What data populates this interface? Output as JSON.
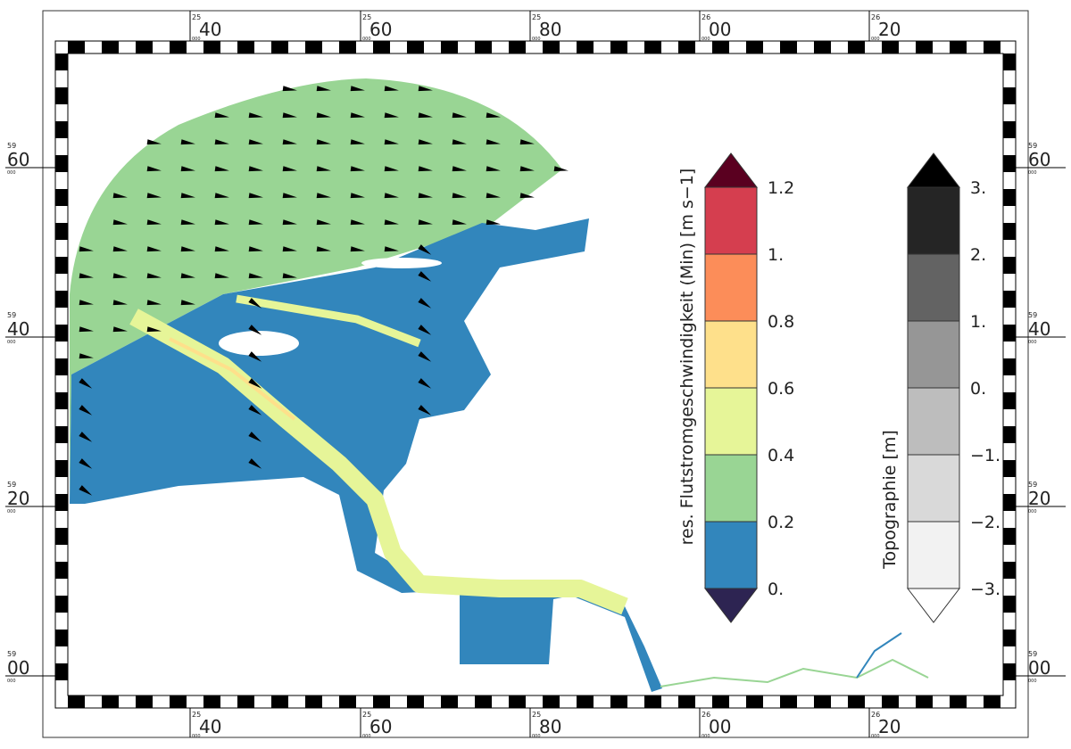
{
  "map": {
    "x_labels": [
      {
        "prefix": "25",
        "main": "40",
        "sub": "000"
      },
      {
        "prefix": "25",
        "main": "60",
        "sub": "000"
      },
      {
        "prefix": "25",
        "main": "80",
        "sub": "000"
      },
      {
        "prefix": "26",
        "main": "00",
        "sub": "000"
      },
      {
        "prefix": "26",
        "main": "20",
        "sub": "000"
      }
    ],
    "y_labels": [
      {
        "prefix": "59",
        "main": "60",
        "sub": "000"
      },
      {
        "prefix": "59",
        "main": "40",
        "sub": "000"
      },
      {
        "prefix": "59",
        "main": "20",
        "sub": "000"
      },
      {
        "prefix": "59",
        "main": "00",
        "sub": "000"
      }
    ]
  },
  "colorbars": [
    {
      "label": "res. Flutstromgeschwindigkeit (Min) [m s−1]",
      "ticks": [
        "0.",
        "0.2",
        "0.4",
        "0.6",
        "0.8",
        "1.",
        "1.2"
      ],
      "under_color": "#2d2452",
      "colors": [
        "#3286bc",
        "#99d594",
        "#e6f598",
        "#fee08b",
        "#fc8d59",
        "#d53e4f"
      ],
      "over_color": "#5a0020"
    },
    {
      "label": "Topographie [m]",
      "ticks": [
        "−3.",
        "−2.",
        "−1.",
        "0.",
        "1.",
        "2.",
        "3."
      ],
      "under_color": "#ffffff",
      "colors": [
        "#f2f2f2",
        "#d9d9d9",
        "#bdbdbd",
        "#969696",
        "#636363",
        "#252525"
      ],
      "over_color": "#000000"
    }
  ]
}
